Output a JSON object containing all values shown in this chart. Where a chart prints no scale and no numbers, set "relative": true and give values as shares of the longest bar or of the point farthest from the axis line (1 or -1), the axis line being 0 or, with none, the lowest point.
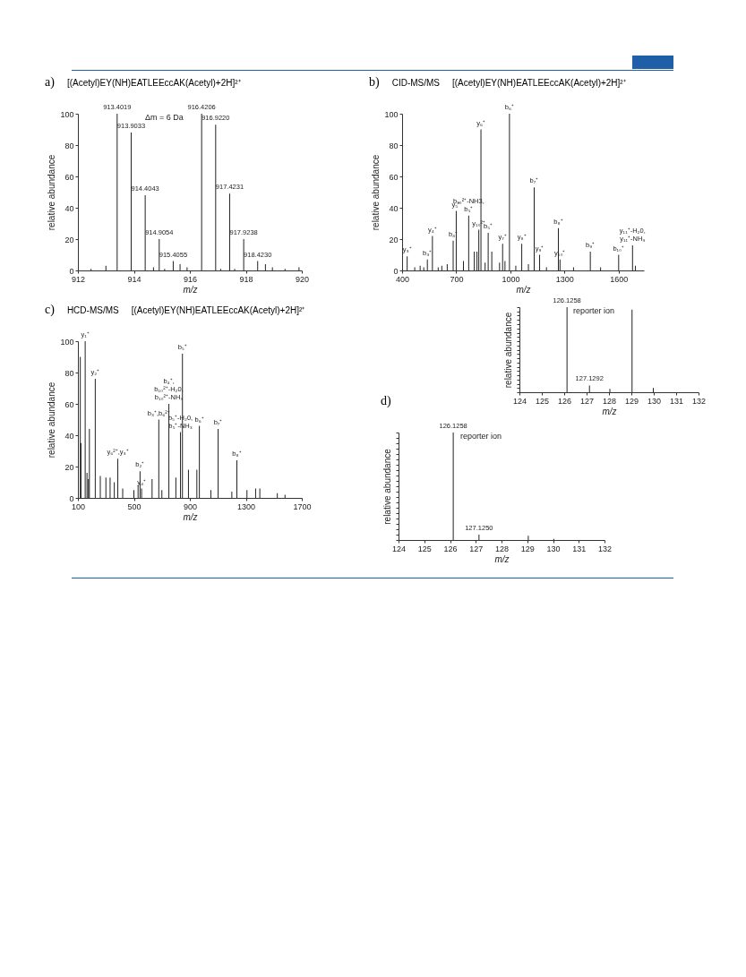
{
  "chart_data": [
    {
      "type": "bar",
      "title": "[(Acetyl)EY(NH)EATLEEccAK(Acetyl)+2H]²⁺",
      "annotations": [
        "a)",
        "Δm = 6 Da",
        {
          "text": "913.4019",
          "x": 913.4019,
          "y": 100
        },
        {
          "text": "913.9033",
          "x": 913.9033,
          "y": 88
        },
        {
          "text": "914.4043",
          "x": 914.4043,
          "y": 48
        },
        {
          "text": "914.9054",
          "x": 914.9054,
          "y": 20
        },
        {
          "text": "915.4055",
          "x": 915.4055,
          "y": 6
        },
        {
          "text": "916.4206",
          "x": 916.4206,
          "y": 100
        },
        {
          "text": "916.9220",
          "x": 916.922,
          "y": 93
        },
        {
          "text": "917.4231",
          "x": 917.4231,
          "y": 49
        },
        {
          "text": "917.9238",
          "x": 917.9238,
          "y": 20
        },
        {
          "text": "918.4230",
          "x": 918.423,
          "y": 6
        }
      ],
      "xlabel": "m/z",
      "ylabel": "relative abundance",
      "color": "#222222",
      "xlim": [
        912,
        920
      ],
      "xticks": [
        912,
        914,
        916,
        918,
        920
      ],
      "ylim": [
        0,
        100
      ],
      "yticks": [
        0,
        20,
        40,
        60,
        80,
        100
      ],
      "x": [
        912.47,
        913.0,
        913.4019,
        913.6,
        913.9033,
        914.4043,
        914.7,
        914.9054,
        915.1,
        915.4055,
        915.65,
        915.9,
        916.4206,
        916.922,
        917.1,
        917.4231,
        917.6,
        917.9238,
        918.423,
        918.7,
        918.95,
        919.4,
        919.9
      ],
      "values": [
        1,
        3,
        100,
        null,
        88,
        48,
        2,
        20,
        1,
        6,
        4,
        2,
        100,
        93,
        1,
        49,
        1,
        20,
        6,
        4,
        2,
        1,
        2
      ]
    },
    {
      "type": "bar",
      "title": "[(Acetyl)EY(NH)EATLEEccAK(Acetyl)+2H]²⁺",
      "subtitle": "CID-MS/MS",
      "annotations": [
        "b)",
        {
          "text": "y₃⁺",
          "x": 428,
          "y": 9
        },
        {
          "text": "b₃⁺",
          "x": 540,
          "y": 7
        },
        {
          "text": "y₄⁺",
          "x": 568,
          "y": 22
        },
        {
          "text": "b₄⁺",
          "x": 683,
          "y": 19
        },
        {
          "text": "y₅⁺",
          "x": 700,
          "y": 38
        },
        {
          "text": "b₁₀²⁺-NH3,\nb₅⁺",
          "x": 769,
          "y": 35
        },
        {
          "text": "y₁₀²⁺",
          "x": 825,
          "y": 26
        },
        {
          "text": "y₆⁺",
          "x": 837,
          "y": 90
        },
        {
          "text": "b₅⁺",
          "x": 877,
          "y": 24
        },
        {
          "text": "y₇⁺",
          "x": 957,
          "y": 17
        },
        {
          "text": "b₆⁺",
          "x": 995,
          "y": 100
        },
        {
          "text": "y₈⁺",
          "x": 1063,
          "y": 17
        },
        {
          "text": "b₇⁺",
          "x": 1132,
          "y": 53
        },
        {
          "text": "y₉⁺",
          "x": 1162,
          "y": 10
        },
        {
          "text": "b₈⁺",
          "x": 1266,
          "y": 27
        },
        {
          "text": "y₁₀⁺",
          "x": 1275,
          "y": 7
        },
        {
          "text": "b₉⁺",
          "x": 1443,
          "y": 12
        },
        {
          "text": "b₁₀⁺",
          "x": 1600,
          "y": 10
        },
        {
          "text": "y₁₁⁺-H₂0,\ny₁₁⁺-NH₃",
          "x": 1677,
          "y": 16
        }
      ],
      "xlabel": "m/z",
      "ylabel": "relative abundance",
      "color": "#222222",
      "xlim": [
        400,
        1740
      ],
      "xticks": [
        400,
        700,
        1000,
        1300,
        1600
      ],
      "ylim": [
        0,
        100
      ],
      "yticks": [
        0,
        20,
        40,
        60,
        80,
        100
      ],
      "x": [
        428,
        470,
        500,
        520,
        540,
        568,
        600,
        620,
        650,
        683,
        700,
        740,
        769,
        800,
        815,
        825,
        837,
        860,
        877,
        897,
        940,
        957,
        970,
        995,
        1030,
        1063,
        1100,
        1132,
        1162,
        1200,
        1266,
        1275,
        1350,
        1443,
        1500,
        1600,
        1677,
        1693
      ],
      "values": [
        9,
        2,
        3,
        2,
        7,
        22,
        2,
        3,
        4,
        19,
        38,
        6,
        35,
        12,
        12,
        26,
        90,
        5,
        24,
        12,
        5,
        17,
        6,
        100,
        3,
        17,
        4,
        53,
        10,
        2,
        27,
        7,
        2,
        12,
        2,
        10,
        16,
        3
      ]
    },
    {
      "type": "bar",
      "title": "[(Acetyl)EY(NH)EATLEEccAK(Acetyl)+2H]²⁺",
      "subtitle": "HCD-MS/MS",
      "annotations": [
        "c)",
        {
          "text": "y₁⁺",
          "x": 152,
          "y": 100
        },
        {
          "text": "y₂⁺",
          "x": 224,
          "y": 76
        },
        {
          "text": "y₆²⁺,y₃⁺",
          "x": 385,
          "y": 25
        },
        {
          "text": "b₂⁺",
          "x": 544,
          "y": 17
        },
        {
          "text": "y₄⁺",
          "x": 555,
          "y": 6
        },
        {
          "text": "b₃⁺,b₆²⁺",
          "x": 678,
          "y": 50
        },
        {
          "text": "b₄⁺,\nb₁₀²⁺-H₂0,\nb₁₀²⁺-NH₃",
          "x": 750,
          "y": 60
        },
        {
          "text": "b₅⁺-H₂0,\nb₅⁺-NH₃",
          "x": 833,
          "y": 42
        },
        {
          "text": "b₅⁺",
          "x": 847,
          "y": 92
        },
        {
          "text": "b₆⁺",
          "x": 968,
          "y": 46
        },
        {
          "text": "b₇⁺",
          "x": 1102,
          "y": 44
        },
        {
          "text": "b₈⁺",
          "x": 1236,
          "y": 24
        }
      ],
      "xlabel": "m/z",
      "ylabel": "relative abundance",
      "color": "#222222",
      "xlim": [
        100,
        1700
      ],
      "xticks": [
        100,
        500,
        900,
        1300,
        1700
      ],
      "ylim": [
        0,
        100
      ],
      "yticks": [
        0,
        20,
        40,
        60,
        80,
        100
      ],
      "x": [
        117,
        122,
        152,
        165,
        175,
        182,
        224,
        260,
        300,
        330,
        360,
        385,
        420,
        500,
        530,
        544,
        555,
        630,
        678,
        700,
        750,
        800,
        833,
        847,
        890,
        950,
        968,
        1050,
        1102,
        1200,
        1236,
        1308,
        1370,
        1400,
        1525,
        1580
      ],
      "values": [
        90,
        35,
        100,
        16,
        12,
        44,
        76,
        14,
        13,
        13,
        10,
        25,
        6,
        5,
        8,
        17,
        6,
        12,
        50,
        5,
        60,
        13,
        42,
        92,
        18,
        18,
        46,
        5,
        44,
        4,
        24,
        5,
        6,
        6,
        3,
        2
      ]
    },
    {
      "type": "bar",
      "relative": true,
      "annotations": [
        "d)",
        "reporter ion",
        {
          "text": "126.1258",
          "x": 126.1258,
          "y": 1
        },
        {
          "text": "127.1250",
          "x": 127.125,
          "y": 0.05
        }
      ],
      "xlabel": "m/z",
      "ylabel": "relative abundance",
      "color": "#222222",
      "xlim": [
        124,
        132
      ],
      "xticks": [
        124,
        125,
        126,
        127,
        128,
        129,
        130,
        131,
        132
      ],
      "x": [
        126.1258,
        127.125,
        129.04,
        130.03
      ],
      "values": [
        1,
        0.05,
        0.04,
        0.01
      ]
    },
    {
      "type": "bar",
      "relative": true,
      "annotations": [
        "reporter ion",
        {
          "text": "126.1258",
          "x": 126.1258,
          "y": 1
        },
        {
          "text": "127.1292",
          "x": 127.1292,
          "y": 0.08
        }
      ],
      "xlabel": "m/z",
      "ylabel": "relative abundance",
      "color": "#222222",
      "xlim": [
        124,
        132
      ],
      "xticks": [
        124,
        125,
        126,
        127,
        128,
        129,
        130,
        131,
        132
      ],
      "x": [
        126.1258,
        127.1292,
        127.6,
        128.04,
        129.03,
        129.98
      ],
      "values": [
        1,
        0.08,
        null,
        0.04,
        0.97,
        0.05
      ]
    }
  ]
}
